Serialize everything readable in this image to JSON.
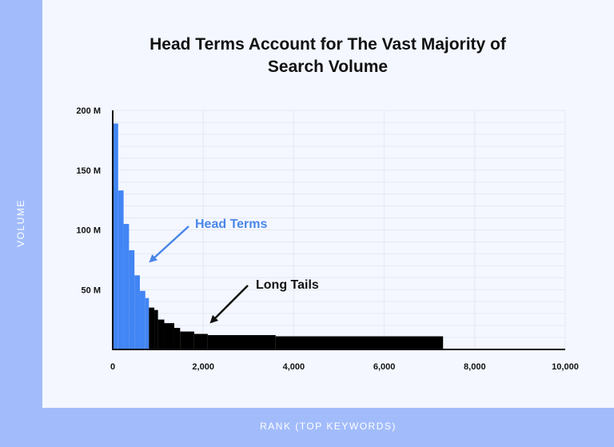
{
  "chart_data": {
    "type": "bar",
    "title": "Head Terms Account for The Vast Majority of Search Volume",
    "xlabel": "RANK (TOP KEYWORDS)",
    "ylabel": "VOLUME",
    "xlim": [
      0,
      10000
    ],
    "ylim": [
      0,
      200
    ],
    "xticks": [
      "0",
      "2,000",
      "4,000",
      "6,000",
      "8,000",
      "10,000"
    ],
    "yticks": [
      "50 M",
      "100 M",
      "150 M",
      "200 M"
    ],
    "grid": true,
    "colors": {
      "head": "#4285f4",
      "tail": "#000000",
      "arrow_head": "#4a86e8"
    },
    "series": [
      {
        "name": "Head Terms",
        "color": "#4285f4",
        "bins": [
          {
            "x0": 0,
            "x1": 120,
            "y": 189
          },
          {
            "x0": 120,
            "x1": 240,
            "y": 133
          },
          {
            "x0": 240,
            "x1": 360,
            "y": 105
          },
          {
            "x0": 360,
            "x1": 480,
            "y": 83
          },
          {
            "x0": 480,
            "x1": 600,
            "y": 62
          },
          {
            "x0": 600,
            "x1": 720,
            "y": 49
          },
          {
            "x0": 720,
            "x1": 800,
            "y": 43
          }
        ]
      },
      {
        "name": "Long Tails",
        "color": "#000000",
        "bins": [
          {
            "x0": 800,
            "x1": 920,
            "y": 35
          },
          {
            "x0": 920,
            "x1": 1000,
            "y": 33
          },
          {
            "x0": 1000,
            "x1": 1140,
            "y": 25
          },
          {
            "x0": 1140,
            "x1": 1360,
            "y": 22
          },
          {
            "x0": 1360,
            "x1": 1490,
            "y": 18
          },
          {
            "x0": 1490,
            "x1": 1800,
            "y": 15
          },
          {
            "x0": 1800,
            "x1": 2100,
            "y": 13
          },
          {
            "x0": 2100,
            "x1": 3600,
            "y": 12
          },
          {
            "x0": 3600,
            "x1": 7300,
            "y": 11
          }
        ]
      }
    ],
    "annotations": [
      {
        "text": "Head Terms",
        "series": "Head Terms"
      },
      {
        "text": "Long Tails",
        "series": "Long Tails"
      }
    ]
  }
}
